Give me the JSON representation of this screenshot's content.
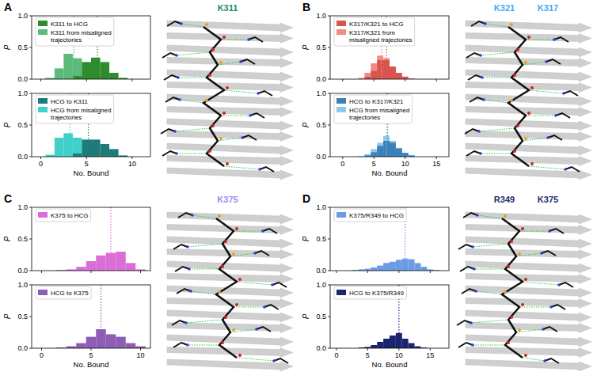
{
  "chart_data": [
    {
      "type": "histogram",
      "panel": "A",
      "y_label": "P",
      "tick_labels": "y",
      "legend": "upper left",
      "annotations": [
        {
          "text": "K311",
          "color": "#1e8c5a"
        }
      ],
      "xlim": [
        -1,
        12
      ],
      "xticks": [
        0,
        5,
        10
      ],
      "ylim": [
        0,
        1
      ],
      "yticks": [
        {
          "value": 0,
          "label": "0.0"
        },
        {
          "value": 0.5,
          "label": "0.5"
        },
        {
          "value": 1,
          "label": "1.0"
        }
      ],
      "bins": [
        -0.5,
        0.5,
        1.5,
        2.5,
        3.5,
        4.5,
        5.5,
        6.5,
        7.5,
        8.5,
        9.5
      ],
      "series": [
        {
          "name": "K311 to HCG",
          "color": "#2e8b2e",
          "values": [
            0,
            0,
            0,
            0,
            0.05,
            0.27,
            0.34,
            0.27,
            0.1,
            0.02
          ]
        },
        {
          "name": "K311 from misaligned trajectories",
          "color": "#5dbb7a",
          "values": [
            0,
            0.02,
            0.17,
            0.4,
            0.33,
            0.22,
            0.05,
            0,
            0,
            0
          ]
        }
      ],
      "reference_lines": [
        {
          "value": 6.2,
          "color": "#2e8b2e"
        },
        {
          "value": 3.6,
          "color": "#5dbb7a"
        }
      ]
    },
    {
      "type": "histogram",
      "panel": "A",
      "y_label": "P",
      "x_label": "No. Bound",
      "tick_labels": true,
      "legend": "upper left",
      "xlim": [
        -1,
        12
      ],
      "xticks": [
        0,
        5,
        10
      ],
      "ylim": [
        0,
        1
      ],
      "yticks": [
        {
          "value": 0,
          "label": "0.0"
        },
        {
          "value": 0.5,
          "label": "0.5"
        },
        {
          "value": 1,
          "label": "1.0"
        }
      ],
      "bins": [
        -0.5,
        0.5,
        1.5,
        2.5,
        3.5,
        4.5,
        5.5,
        6.5,
        7.5,
        8.5,
        9.5
      ],
      "series": [
        {
          "name": "HCG to K311",
          "color": "#1f7a7a",
          "values": [
            0,
            0,
            0,
            0,
            0.05,
            0.27,
            0.27,
            0.2,
            0.12,
            0.02
          ]
        },
        {
          "name": "HCG from misaligned trajectories",
          "color": "#3fd1c9",
          "values": [
            0,
            0.03,
            0.3,
            0.37,
            0.3,
            0.18,
            0.04,
            0,
            0,
            0
          ]
        }
      ],
      "reference_lines": [
        {
          "value": 5.2,
          "color": "#1f7a7a"
        },
        {
          "value": 3.2,
          "color": "#3fd1c9"
        }
      ]
    },
    {
      "type": "histogram",
      "panel": "B",
      "y_label": "P",
      "tick_labels": "y",
      "legend": "upper left",
      "annotations": [
        {
          "text": "K321",
          "color": "#3fa9f5"
        },
        {
          "text": "K317",
          "color": "#3fa9f5"
        }
      ],
      "xlim": [
        -2,
        17
      ],
      "xticks": [
        0,
        5,
        10,
        15
      ],
      "ylim": [
        0,
        1
      ],
      "yticks": [
        {
          "value": 0,
          "label": "0.0"
        },
        {
          "value": 0.5,
          "label": "0.5"
        },
        {
          "value": 1,
          "label": "1.0"
        }
      ],
      "bins": [
        -0.5,
        0.5,
        1.5,
        2.5,
        3.5,
        4.5,
        5.5,
        6.5,
        7.5,
        8.5,
        9.5,
        10.5,
        11.5,
        12.5,
        13.5,
        14.5
      ],
      "series": [
        {
          "name": "K317/K321 to HCG",
          "color": "#d9534f",
          "values": [
            0,
            0,
            0,
            0,
            0.04,
            0.13,
            0.3,
            0.3,
            0.2,
            0.1,
            0.04,
            0.01,
            0,
            0,
            0
          ]
        },
        {
          "name": "K317/K321 from misaligned trajectories",
          "color": "#f08c84",
          "values": [
            0,
            0,
            0,
            0.02,
            0.1,
            0.25,
            0.37,
            0.33,
            0.18,
            0.07,
            0.02,
            0,
            0,
            0,
            0
          ]
        }
      ],
      "reference_lines": [
        {
          "value": 7.0,
          "color": "#d9534f"
        },
        {
          "value": 6.2,
          "color": "#f08c84"
        }
      ]
    },
    {
      "type": "histogram",
      "panel": "B",
      "y_label": "P",
      "x_label": "No. Bound",
      "tick_labels": true,
      "legend": "upper left",
      "xlim": [
        -2,
        17
      ],
      "xticks": [
        0,
        5,
        10,
        15
      ],
      "ylim": [
        0,
        1
      ],
      "yticks": [
        {
          "value": 0,
          "label": "0.0"
        },
        {
          "value": 0.5,
          "label": "0.5"
        },
        {
          "value": 1,
          "label": "1.0"
        }
      ],
      "bins": [
        -0.5,
        0.5,
        1.5,
        2.5,
        3.5,
        4.5,
        5.5,
        6.5,
        7.5,
        8.5,
        9.5,
        10.5,
        11.5,
        12.5,
        13.5,
        14.5
      ],
      "series": [
        {
          "name": "HCG to K317/K321",
          "color": "#3d7fb8",
          "values": [
            0,
            0,
            0,
            0,
            0.02,
            0.07,
            0.17,
            0.25,
            0.22,
            0.13,
            0.06,
            0.02,
            0,
            0,
            0
          ]
        },
        {
          "name": "HCG from misaligned trajectories",
          "color": "#8ccbea",
          "values": [
            0,
            0,
            0,
            0.01,
            0.04,
            0.12,
            0.22,
            0.33,
            0.25,
            0.14,
            0.06,
            0.02,
            0,
            0,
            0
          ]
        }
      ],
      "reference_lines": [
        {
          "value": 7.2,
          "color": "#3d7fb8"
        },
        {
          "value": 7.0,
          "color": "#8ccbea"
        }
      ]
    },
    {
      "type": "histogram",
      "panel": "C",
      "y_label": "P",
      "tick_labels": "y",
      "legend": "upper left",
      "annotations": [
        {
          "text": "K375",
          "color": "#9b8cf0"
        }
      ],
      "xlim": [
        -1,
        11
      ],
      "xticks": [
        0,
        5,
        10
      ],
      "ylim": [
        0,
        1
      ],
      "yticks": [
        {
          "value": 0,
          "label": "0.0"
        },
        {
          "value": 0.5,
          "label": "0.5"
        },
        {
          "value": 1,
          "label": "1.0"
        }
      ],
      "bins": [
        -0.5,
        0.5,
        1.5,
        2.5,
        3.5,
        4.5,
        5.5,
        6.5,
        7.5,
        8.5,
        9.5,
        10.5
      ],
      "series": [
        {
          "name": "K375 to HCG",
          "color": "#d96fd6",
          "values": [
            0,
            0,
            0.01,
            0.02,
            0.06,
            0.15,
            0.24,
            0.28,
            0.3,
            0.12,
            0.02
          ]
        }
      ],
      "reference_lines": [
        {
          "value": 7.0,
          "color": "#d96fd6"
        }
      ]
    },
    {
      "type": "histogram",
      "panel": "C",
      "y_label": "P",
      "x_label": "No. Bound",
      "tick_labels": true,
      "legend": "upper left",
      "xlim": [
        -1,
        11
      ],
      "xticks": [
        0,
        5,
        10
      ],
      "ylim": [
        0,
        1
      ],
      "yticks": [
        {
          "value": 0,
          "label": "0.0"
        },
        {
          "value": 0.5,
          "label": "0.5"
        },
        {
          "value": 1,
          "label": "1.0"
        }
      ],
      "bins": [
        -0.5,
        0.5,
        1.5,
        2.5,
        3.5,
        4.5,
        5.5,
        6.5,
        7.5,
        8.5,
        9.5,
        10.5
      ],
      "series": [
        {
          "name": "HCG to K375",
          "color": "#8e5db5",
          "values": [
            0,
            0,
            0.01,
            0.03,
            0.08,
            0.18,
            0.3,
            0.22,
            0.18,
            0.08,
            0.03
          ]
        }
      ],
      "reference_lines": [
        {
          "value": 6.0,
          "color": "#8e5db5"
        }
      ]
    },
    {
      "type": "histogram",
      "panel": "D",
      "y_label": "P",
      "tick_labels": "y",
      "legend": "upper left",
      "annotations": [
        {
          "text": "R349",
          "color": "#1c2a6e"
        },
        {
          "text": "K375",
          "color": "#1c2a6e"
        }
      ],
      "xlim": [
        -1,
        18
      ],
      "xticks": [
        0,
        5,
        10,
        15
      ],
      "ylim": [
        0,
        1
      ],
      "yticks": [
        {
          "value": 0,
          "label": "0.0"
        },
        {
          "value": 0.5,
          "label": "0.5"
        },
        {
          "value": 1,
          "label": "1.0"
        }
      ],
      "bins": [
        -0.5,
        0.5,
        1.5,
        2.5,
        3.5,
        4.5,
        5.5,
        6.5,
        7.5,
        8.5,
        9.5,
        10.5,
        11.5,
        12.5,
        13.5,
        14.5,
        15.5,
        16.5
      ],
      "series": [
        {
          "name": "K375/R349 to HCG",
          "color": "#6a9be6",
          "values": [
            0,
            0,
            0,
            0.01,
            0.02,
            0.03,
            0.05,
            0.08,
            0.12,
            0.14,
            0.17,
            0.19,
            0.18,
            0.12,
            0.06,
            0.02,
            0.01
          ]
        }
      ],
      "reference_lines": [
        {
          "value": 11.0,
          "color": "#6a9be6"
        }
      ]
    },
    {
      "type": "histogram",
      "panel": "D",
      "y_label": "P",
      "x_label": "No. Bound",
      "tick_labels": true,
      "legend": "upper left",
      "xlim": [
        -1,
        18
      ],
      "xticks": [
        0,
        5,
        10,
        15
      ],
      "ylim": [
        0,
        1
      ],
      "yticks": [
        {
          "value": 0,
          "label": "0.0"
        },
        {
          "value": 0.5,
          "label": "0.5"
        },
        {
          "value": 1,
          "label": "1.0"
        }
      ],
      "bins": [
        -0.5,
        0.5,
        1.5,
        2.5,
        3.5,
        4.5,
        5.5,
        6.5,
        7.5,
        8.5,
        9.5,
        10.5,
        11.5,
        12.5,
        13.5,
        14.5,
        15.5,
        16.5
      ],
      "series": [
        {
          "name": "HCG to K375/R349",
          "color": "#1b2470",
          "values": [
            0,
            0,
            0,
            0,
            0.01,
            0.02,
            0.05,
            0.1,
            0.15,
            0.2,
            0.24,
            0.15,
            0.08,
            0.03,
            0.01,
            0,
            0
          ]
        }
      ],
      "reference_lines": [
        {
          "value": 10.0,
          "color": "#1b2470"
        }
      ]
    }
  ]
}
